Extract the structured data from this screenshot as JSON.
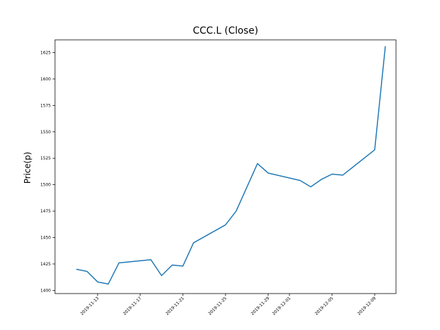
{
  "chart_data": {
    "type": "line",
    "title": "CCC.L (Close)",
    "xlabel": "",
    "ylabel": "Price(p)",
    "x_ticks": [
      "2019-11-13",
      "2019-11-17",
      "2019-11-21",
      "2019-11-25",
      "2019-11-29",
      "2019-12-01",
      "2019-12-05",
      "2019-12-09"
    ],
    "y_ticks": [
      1400,
      1425,
      1450,
      1475,
      1500,
      1525,
      1550,
      1575,
      1600,
      1625
    ],
    "xlim": [
      "2019-11-09",
      "2019-12-11"
    ],
    "ylim": [
      1397,
      1637
    ],
    "grid": false,
    "legend": "none",
    "line_color": "#1f77b4",
    "series": [
      {
        "x": [
          "2019-11-11",
          "2019-11-12",
          "2019-11-13",
          "2019-11-14",
          "2019-11-15",
          "2019-11-18",
          "2019-11-19",
          "2019-11-20",
          "2019-11-21",
          "2019-11-22",
          "2019-11-25",
          "2019-11-26",
          "2019-11-28",
          "2019-11-29",
          "2019-12-02",
          "2019-12-03",
          "2019-12-04",
          "2019-12-05",
          "2019-12-06",
          "2019-12-09",
          "2019-12-10"
        ],
        "values": [
          1420,
          1418,
          1408,
          1406,
          1426,
          1429,
          1414,
          1424,
          1423,
          1445,
          1462,
          1475,
          1520,
          1511,
          1504,
          1498,
          1505,
          1510,
          1509,
          1533,
          1631
        ]
      }
    ]
  }
}
